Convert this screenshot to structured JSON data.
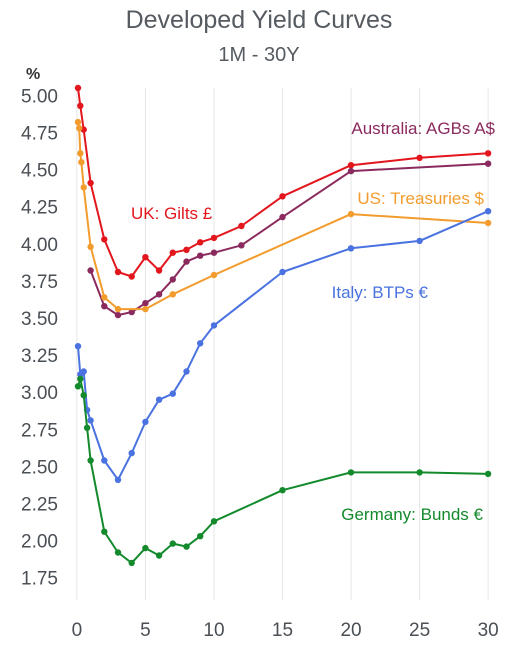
{
  "chart_data": {
    "type": "line",
    "title": "Developed Yield Curves",
    "subtitle": "1M - 30Y",
    "xlabel": "",
    "ylabel": "%",
    "xlim": [
      -0.5,
      30.5
    ],
    "ylim": [
      1.6,
      5.05
    ],
    "x_ticks": [
      0,
      5,
      10,
      15,
      20,
      25,
      30
    ],
    "y_ticks": [
      1.75,
      2.0,
      2.25,
      2.5,
      2.75,
      3.0,
      3.25,
      3.5,
      3.75,
      4.0,
      4.25,
      4.5,
      4.75,
      5.0
    ],
    "y_tick_labels": [
      "1.75",
      "2.00",
      "2.25",
      "2.50",
      "2.75",
      "3.00",
      "3.25",
      "3.50",
      "3.75",
      "4.00",
      "4.25",
      "4.50",
      "4.75",
      "5.00"
    ],
    "grid": "vertical",
    "legend": "none",
    "series": [
      {
        "name": "UK: Gilts £",
        "color": "#e3161d",
        "points": [
          [
            0.08,
            5.05
          ],
          [
            0.25,
            4.93
          ],
          [
            0.5,
            4.77
          ],
          [
            1,
            4.41
          ],
          [
            2,
            4.03
          ],
          [
            3,
            3.81
          ],
          [
            4,
            3.78
          ],
          [
            5,
            3.91
          ],
          [
            6,
            3.82
          ],
          [
            7,
            3.94
          ],
          [
            8,
            3.96
          ],
          [
            9,
            4.01
          ],
          [
            10,
            4.04
          ],
          [
            12,
            4.12
          ],
          [
            15,
            4.32
          ],
          [
            20,
            4.53
          ],
          [
            25,
            4.58
          ],
          [
            30,
            4.61
          ]
        ]
      },
      {
        "name": "Australia: AGBs A$",
        "color": "#8b2a5e",
        "points": [
          [
            1,
            3.82
          ],
          [
            2,
            3.58
          ],
          [
            3,
            3.52
          ],
          [
            4,
            3.54
          ],
          [
            5,
            3.6
          ],
          [
            6,
            3.66
          ],
          [
            7,
            3.76
          ],
          [
            8,
            3.88
          ],
          [
            9,
            3.92
          ],
          [
            10,
            3.94
          ],
          [
            12,
            3.99
          ],
          [
            15,
            4.18
          ],
          [
            20,
            4.49
          ],
          [
            30,
            4.54
          ]
        ]
      },
      {
        "name": "US: Treasuries $",
        "color": "#f39c2e",
        "points": [
          [
            0.08,
            4.82
          ],
          [
            0.17,
            4.78
          ],
          [
            0.25,
            4.61
          ],
          [
            0.33,
            4.55
          ],
          [
            0.5,
            4.38
          ],
          [
            1,
            3.98
          ],
          [
            2,
            3.64
          ],
          [
            3,
            3.56
          ],
          [
            5,
            3.56
          ],
          [
            7,
            3.66
          ],
          [
            10,
            3.79
          ],
          [
            20,
            4.2
          ],
          [
            30,
            4.14
          ]
        ]
      },
      {
        "name": "Italy: BTPs €",
        "color": "#4a72e0",
        "points": [
          [
            0.08,
            3.31
          ],
          [
            0.25,
            3.12
          ],
          [
            0.5,
            3.14
          ],
          [
            0.75,
            2.88
          ],
          [
            1,
            2.81
          ],
          [
            2,
            2.54
          ],
          [
            3,
            2.41
          ],
          [
            4,
            2.59
          ],
          [
            5,
            2.8
          ],
          [
            6,
            2.95
          ],
          [
            7,
            2.99
          ],
          [
            8,
            3.14
          ],
          [
            9,
            3.33
          ],
          [
            10,
            3.45
          ],
          [
            15,
            3.81
          ],
          [
            20,
            3.97
          ],
          [
            25,
            4.02
          ],
          [
            30,
            4.22
          ]
        ]
      },
      {
        "name": "Germany: Bunds €",
        "color": "#138a2c",
        "points": [
          [
            0.08,
            3.04
          ],
          [
            0.25,
            3.09
          ],
          [
            0.5,
            2.98
          ],
          [
            0.75,
            2.76
          ],
          [
            1,
            2.54
          ],
          [
            2,
            2.06
          ],
          [
            3,
            1.92
          ],
          [
            4,
            1.85
          ],
          [
            5,
            1.95
          ],
          [
            6,
            1.9
          ],
          [
            7,
            1.98
          ],
          [
            8,
            1.96
          ],
          [
            9,
            2.03
          ],
          [
            10,
            2.13
          ],
          [
            15,
            2.34
          ],
          [
            20,
            2.46
          ],
          [
            25,
            2.46
          ],
          [
            30,
            2.45
          ]
        ]
      }
    ]
  }
}
